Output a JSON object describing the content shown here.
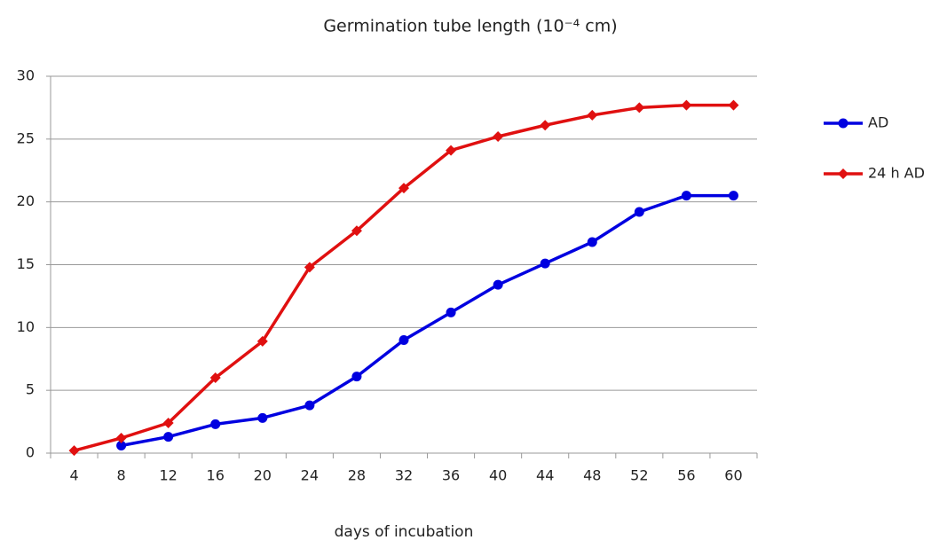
{
  "chart_data": {
    "type": "line",
    "title": "Germination tube length (10⁻⁴ cm)",
    "x_label": "days of incubation",
    "categories": [
      "4",
      "8",
      "12",
      "16",
      "20",
      "24",
      "28",
      "32",
      "36",
      "40",
      "44",
      "48",
      "52",
      "56",
      "60"
    ],
    "series": [
      {
        "name": "AD",
        "color": "#0000e0",
        "marker": "circle",
        "values": [
          null,
          0.6,
          1.3,
          2.3,
          2.8,
          3.8,
          6.1,
          9.0,
          11.2,
          13.4,
          15.1,
          16.8,
          19.2,
          20.5,
          20.5
        ]
      },
      {
        "name": "24 h AD",
        "color": "#e01010",
        "marker": "diamond",
        "values": [
          0.2,
          1.2,
          2.4,
          6.0,
          8.9,
          14.8,
          17.7,
          21.1,
          24.1,
          25.2,
          26.1,
          26.9,
          27.5,
          27.7,
          27.7
        ]
      }
    ],
    "ylim": [
      0,
      30
    ],
    "yticks": [
      0,
      5,
      10,
      15,
      20,
      25,
      30
    ],
    "grid": true,
    "legend": "right"
  }
}
